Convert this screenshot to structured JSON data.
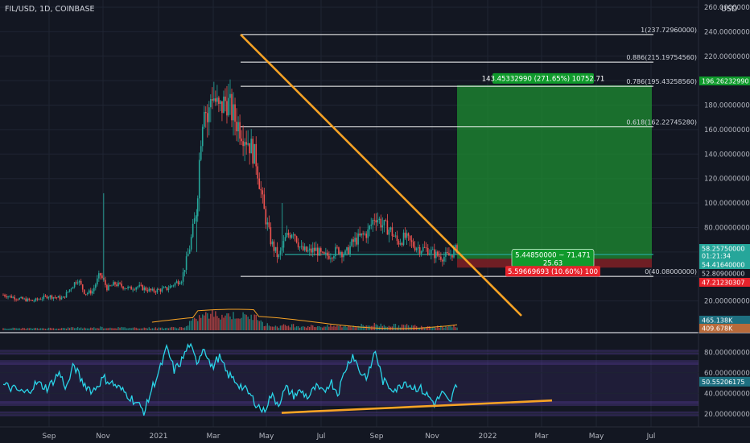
{
  "header": {
    "symbol_line": "FIL/USD, 1D, COINBASE",
    "currency": "USD"
  },
  "colors": {
    "background": "#131722",
    "grid": "#1f2433",
    "up": "#26a69a",
    "down": "#ef5350",
    "trendline": "#f7a325",
    "fib": "#ffffff",
    "target_zone": "#1e8d32",
    "stop_zone": "#7a1f25",
    "target_label": "#109a2c",
    "stop_label": "#e7232c",
    "rsi_line": "#2ad4e8",
    "rsi_band": "#5b3fa0",
    "entry_line": "#26a69a",
    "volume_ma": "#f7a325"
  },
  "chart_data": [
    {
      "type": "candlestick",
      "title": "FIL/USD, 1D, COINBASE",
      "x_tick_labels": [
        "Sep",
        "Nov",
        "2021",
        "Mar",
        "May",
        "Jul",
        "Sep",
        "Nov",
        "2022",
        "Mar",
        "May",
        "Jul"
      ],
      "y_tick_labels": [
        "20.00000000",
        "40.00000000",
        "60.00000000",
        "80.00000000",
        "100.00000000",
        "120.00000000",
        "140.00000000",
        "160.00000000",
        "180.00000000",
        "200.00000000",
        "220.00000000",
        "240.00000000",
        "260.00000000"
      ],
      "ylim": [
        0,
        260
      ],
      "price_path": [
        [
          0,
          25
        ],
        [
          4,
          22
        ],
        [
          8,
          20
        ],
        [
          12,
          24
        ],
        [
          16,
          22
        ],
        [
          18,
          30
        ],
        [
          20,
          38
        ],
        [
          22,
          26
        ],
        [
          24,
          28
        ],
        [
          26,
          42
        ],
        [
          28,
          30
        ],
        [
          30,
          34
        ],
        [
          34,
          30
        ],
        [
          36,
          32
        ],
        [
          40,
          28
        ],
        [
          44,
          30
        ],
        [
          48,
          38
        ],
        [
          50,
          62
        ],
        [
          52,
          95
        ],
        [
          53,
          150
        ],
        [
          54,
          185
        ],
        [
          55,
          165
        ],
        [
          56,
          192
        ],
        [
          58,
          175
        ],
        [
          60,
          185
        ],
        [
          62,
          170
        ],
        [
          64,
          160
        ],
        [
          66,
          150
        ],
        [
          68,
          135
        ],
        [
          70,
          95
        ],
        [
          72,
          68
        ],
        [
          74,
          55
        ],
        [
          76,
          72
        ],
        [
          78,
          78
        ],
        [
          80,
          62
        ],
        [
          82,
          60
        ],
        [
          84,
          62
        ],
        [
          86,
          56
        ],
        [
          88,
          58
        ],
        [
          90,
          62
        ],
        [
          92,
          58
        ],
        [
          94,
          68
        ],
        [
          96,
          72
        ],
        [
          98,
          76
        ],
        [
          100,
          90
        ],
        [
          102,
          82
        ],
        [
          104,
          78
        ],
        [
          106,
          68
        ],
        [
          108,
          72
        ],
        [
          110,
          66
        ],
        [
          112,
          63
        ],
        [
          114,
          62
        ],
        [
          116,
          58
        ],
        [
          118,
          56
        ],
        [
          120,
          57
        ],
        [
          122,
          63
        ]
      ],
      "fib_levels": [
        {
          "label": "1(237.72960000)",
          "price": 237.7296
        },
        {
          "label": "0.886(215.19754560)",
          "price": 215.1975456
        },
        {
          "label": "0.786(195.43258560)",
          "price": 195.4325856
        },
        {
          "label": "0.618(162.22745280)",
          "price": 162.2274528
        },
        {
          "label": "0(40.08000000)",
          "price": 40.08
        }
      ],
      "descending_trendline": [
        [
          237.7,
          "Mar"
        ],
        [
          10,
          "Jan 2022"
        ]
      ],
      "entry_price": 54.4164,
      "position": {
        "target_label": "143.45332990 (271.65%) 10752.71",
        "stop_label": "5.59669693 (10.60%) 100",
        "info_box_line1": "5.44850000 ~ 71.471",
        "info_box_line2": "25.63",
        "target_price": 196.2623299,
        "stop_price": 47.21230307
      },
      "price_axis_labels": [
        {
          "text": "196.26232990",
          "price": 196.26
        },
        {
          "text": "58.25750000",
          "price": 58.2575,
          "line2": "01:21:34"
        },
        {
          "text": "54.41640000",
          "price": 54.4164
        },
        {
          "text": "52.80900000",
          "price": 52.809
        },
        {
          "text": "47.21230307",
          "price": 47.2123
        },
        {
          "text": "465.138K",
          "price": 2
        },
        {
          "text": "409.678K",
          "price": -1
        }
      ],
      "series": [
        {
          "values": []
        }
      ],
      "volume": {
        "ma_label": "465.138K",
        "vol_label": "409.678K"
      }
    },
    {
      "type": "line",
      "title": "",
      "y_tick_labels": [
        "20.00000000",
        "40.00000000",
        "60.00000000",
        "80.00000000"
      ],
      "ylim": [
        12,
        92
      ],
      "band": [
        30,
        70
      ],
      "current_label": "50.55206175",
      "current_value": 50.55,
      "rsi_path": [
        [
          0,
          48
        ],
        [
          3,
          44
        ],
        [
          6,
          40
        ],
        [
          9,
          50
        ],
        [
          12,
          45
        ],
        [
          15,
          60
        ],
        [
          17,
          45
        ],
        [
          19,
          68
        ],
        [
          21,
          52
        ],
        [
          24,
          42
        ],
        [
          27,
          55
        ],
        [
          30,
          48
        ],
        [
          33,
          40
        ],
        [
          36,
          30
        ],
        [
          38,
          22
        ],
        [
          40,
          45
        ],
        [
          42,
          62
        ],
        [
          44,
          84
        ],
        [
          46,
          62
        ],
        [
          48,
          72
        ],
        [
          50,
          88
        ],
        [
          52,
          70
        ],
        [
          54,
          86
        ],
        [
          56,
          64
        ],
        [
          58,
          76
        ],
        [
          60,
          60
        ],
        [
          63,
          50
        ],
        [
          66,
          40
        ],
        [
          68,
          30
        ],
        [
          70,
          22
        ],
        [
          72,
          38
        ],
        [
          74,
          30
        ],
        [
          76,
          45
        ],
        [
          78,
          38
        ],
        [
          80,
          42
        ],
        [
          82,
          36
        ],
        [
          84,
          46
        ],
        [
          86,
          40
        ],
        [
          88,
          52
        ],
        [
          90,
          40
        ],
        [
          92,
          64
        ],
        [
          94,
          78
        ],
        [
          96,
          60
        ],
        [
          98,
          56
        ],
        [
          100,
          82
        ],
        [
          102,
          52
        ],
        [
          104,
          46
        ],
        [
          106,
          44
        ],
        [
          108,
          52
        ],
        [
          110,
          46
        ],
        [
          112,
          45
        ],
        [
          114,
          38
        ],
        [
          116,
          30
        ],
        [
          118,
          40
        ],
        [
          120,
          30
        ],
        [
          122,
          50
        ]
      ],
      "support_line": [
        [
          22,
          "May"
        ],
        [
          33,
          "Mar 2022"
        ]
      ]
    }
  ]
}
